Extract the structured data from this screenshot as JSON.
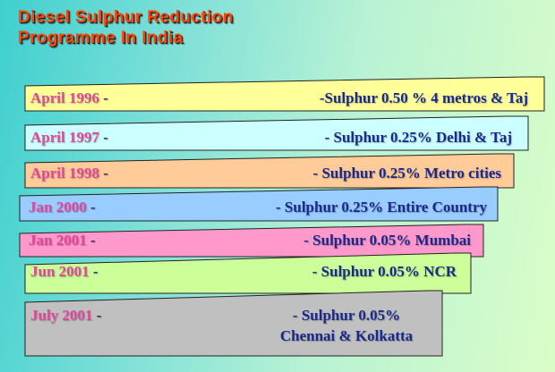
{
  "title": {
    "line1": "Diesel Sulphur Reduction",
    "line2": "Programme In India"
  },
  "rows": [
    {
      "date": "April 1996",
      "dash": "-",
      "description": "-Sulphur 0.50 % 4 metros & Taj",
      "color": "#ffff99"
    },
    {
      "date": "April 1997",
      "dash": "-",
      "description": "- Sulphur 0.25% Delhi & Taj",
      "color": "#ccffff"
    },
    {
      "date": "April 1998",
      "dash": "-",
      "description": "- Sulphur 0.25% Metro cities",
      "color": "#ffcc99"
    },
    {
      "date": "Jan 2000",
      "dash": "-",
      "description": "- Sulphur 0.25% Entire Country",
      "color": "#99ccff"
    },
    {
      "date": "Jan 2001",
      "dash": "-",
      "description": "- Sulphur 0.05% Mumbai",
      "color": "#ff99cc"
    },
    {
      "date": "Jun 2001",
      "dash": "-",
      "description": "- Sulphur 0.05% NCR",
      "color": "#ccff99"
    },
    {
      "date": "July 2001",
      "dash": "-",
      "description_line1": "- Sulphur 0.05%",
      "description_line2": "Chennai & Kolkatta",
      "color": "#c0c0c0"
    }
  ]
}
